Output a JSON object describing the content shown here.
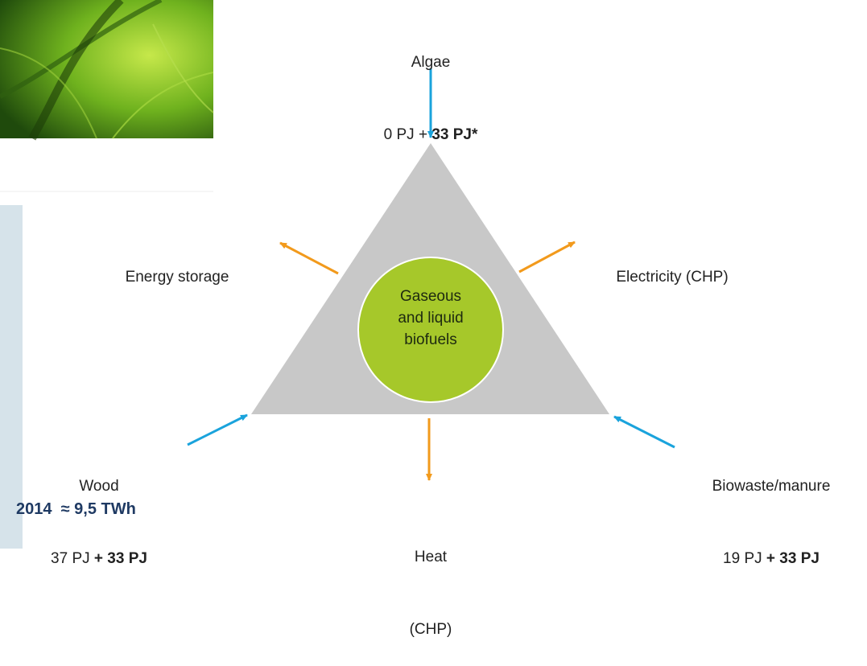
{
  "inputs": [
    {
      "label": "Algae",
      "amount": "0 PJ + ",
      "extra": "33 PJ*"
    },
    {
      "label": "Wood",
      "amount": "37 PJ ",
      "extra": "+ 33 PJ"
    },
    {
      "label": "Biowaste/manure",
      "amount": "19 PJ ",
      "extra": "+ 33 PJ"
    }
  ],
  "outputs": [
    {
      "lines": [
        "Energy storage"
      ]
    },
    {
      "lines": [
        "Electricity (CHP)"
      ]
    },
    {
      "lines": [
        "Heat",
        "(CHP)"
      ]
    }
  ],
  "center": [
    "Gaseous",
    "and liquid",
    "biofuels"
  ],
  "note": "2014  ≈ 9,5 TWh"
}
